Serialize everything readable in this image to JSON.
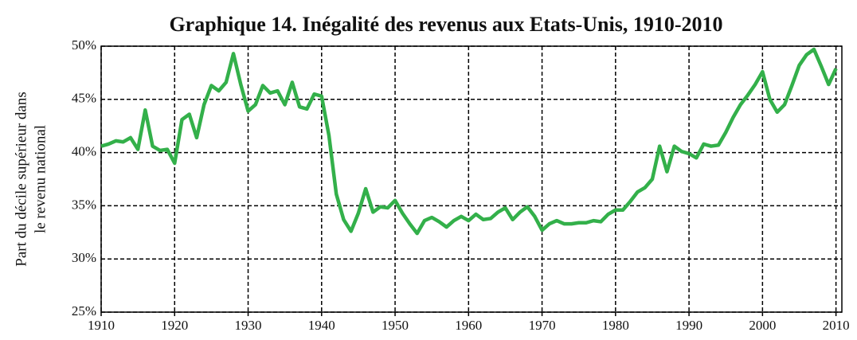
{
  "chart_data": {
    "type": "line",
    "title": "Graphique 14. Inégalité des revenus aux Etats-Unis, 1910-2010",
    "y_label": [
      "Part du décile supérieur dans",
      "le revenu national"
    ],
    "x": [
      1910,
      1911,
      1912,
      1913,
      1914,
      1915,
      1916,
      1917,
      1918,
      1919,
      1920,
      1921,
      1922,
      1923,
      1924,
      1925,
      1926,
      1927,
      1928,
      1929,
      1930,
      1931,
      1932,
      1933,
      1934,
      1935,
      1936,
      1937,
      1938,
      1939,
      1940,
      1941,
      1942,
      1943,
      1944,
      1945,
      1946,
      1947,
      1948,
      1949,
      1950,
      1951,
      1952,
      1953,
      1954,
      1955,
      1956,
      1957,
      1958,
      1959,
      1960,
      1961,
      1962,
      1963,
      1964,
      1965,
      1966,
      1967,
      1968,
      1969,
      1970,
      1971,
      1972,
      1973,
      1974,
      1975,
      1976,
      1977,
      1978,
      1979,
      1980,
      1981,
      1982,
      1983,
      1984,
      1985,
      1986,
      1987,
      1988,
      1989,
      1990,
      1991,
      1992,
      1993,
      1994,
      1995,
      1996,
      1997,
      1998,
      1999,
      2000,
      2001,
      2002,
      2003,
      2004,
      2005,
      2006,
      2007,
      2008,
      2009,
      2010
    ],
    "series": [
      {
        "name": "Part du décile supérieur",
        "color": "#33b04a",
        "values": [
          40.6,
          40.8,
          41.1,
          41.0,
          41.4,
          40.3,
          44.0,
          40.6,
          40.2,
          40.3,
          39.0,
          43.1,
          43.6,
          41.4,
          44.5,
          46.3,
          45.8,
          46.6,
          49.3,
          46.4,
          43.9,
          44.5,
          46.3,
          45.6,
          45.8,
          44.5,
          46.6,
          44.3,
          44.1,
          45.5,
          45.3,
          41.6,
          36.1,
          33.7,
          32.6,
          34.3,
          36.6,
          34.4,
          34.9,
          34.8,
          35.5,
          34.3,
          33.3,
          32.4,
          33.6,
          33.9,
          33.5,
          33.0,
          33.6,
          34.0,
          33.6,
          34.2,
          33.7,
          33.8,
          34.4,
          34.8,
          33.7,
          34.4,
          34.9,
          34.0,
          32.7,
          33.3,
          33.6,
          33.3,
          33.3,
          33.4,
          33.4,
          33.6,
          33.5,
          34.2,
          34.6,
          34.6,
          35.4,
          36.3,
          36.7,
          37.5,
          40.6,
          38.2,
          40.6,
          40.1,
          39.9,
          39.5,
          40.8,
          40.6,
          40.7,
          41.9,
          43.3,
          44.5,
          45.4,
          46.4,
          47.6,
          45.0,
          43.8,
          44.5,
          46.3,
          48.2,
          49.2,
          49.7,
          48.1,
          46.4,
          47.9
        ]
      }
    ],
    "xlim": [
      1910,
      2010.8
    ],
    "xticks": [
      1910,
      1920,
      1930,
      1940,
      1950,
      1960,
      1970,
      1980,
      1990,
      2000,
      2010
    ],
    "ylim": [
      25,
      50
    ],
    "yticks": [
      {
        "value": 25,
        "label": "25%"
      },
      {
        "value": 30,
        "label": "30%"
      },
      {
        "value": 35,
        "label": "35%"
      },
      {
        "value": 40,
        "label": "40%"
      },
      {
        "value": 45,
        "label": "45%"
      },
      {
        "value": 50,
        "label": "50%"
      }
    ],
    "grid": true
  }
}
